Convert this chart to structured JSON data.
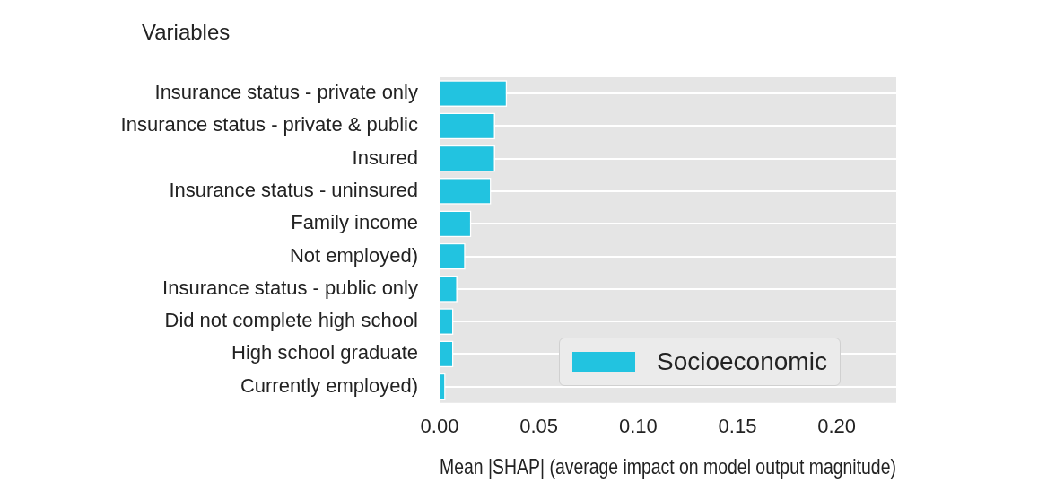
{
  "chart_data": {
    "type": "bar",
    "orientation": "horizontal",
    "ylabel": "Variables",
    "xlabel": "Mean |SHAP| (average impact on model output magnitude)",
    "categories": [
      "Insurance status - private only",
      "Insurance status - private & public",
      "Insured",
      "Insurance status - uninsured",
      "Family income",
      "Not employed)",
      "Insurance status - public only",
      "Did not complete high school",
      "High school graduate",
      "Currently employed)"
    ],
    "series": [
      {
        "name": "Socioeconomic",
        "color": "#22c3e0",
        "values": [
          0.034,
          0.028,
          0.028,
          0.026,
          0.016,
          0.013,
          0.009,
          0.007,
          0.007,
          0.003
        ]
      }
    ],
    "xlim": [
      0,
      0.23
    ],
    "xticks": [
      {
        "value": 0,
        "label": "0.00"
      },
      {
        "value": 0.05,
        "label": "0.05"
      },
      {
        "value": 0.1,
        "label": "0.10"
      },
      {
        "value": 0.15,
        "label": "0.15"
      },
      {
        "value": 0.2,
        "label": "0.20"
      }
    ],
    "grid": "y",
    "legend": "bottom right"
  }
}
